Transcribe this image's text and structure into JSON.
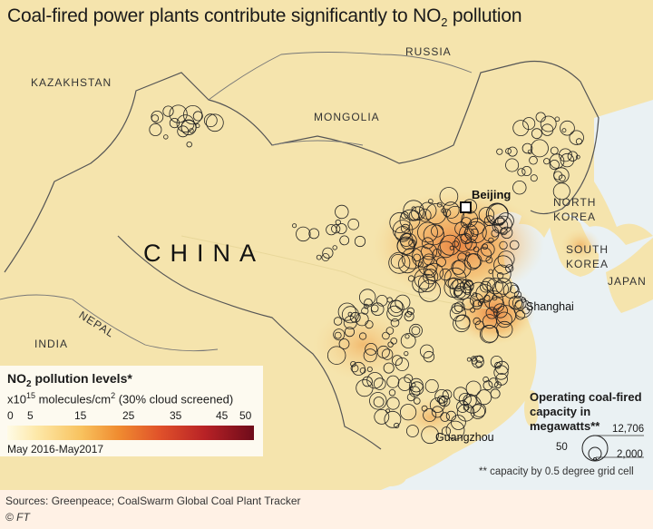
{
  "title": {
    "prefix": "Coal-fired power plants contribute significantly to NO",
    "sub": "2",
    "suffix": " pollution"
  },
  "countries": {
    "russia": "RUSSIA",
    "kazakhstan": "KAZAKHSTAN",
    "mongolia": "MONGOLIA",
    "north_korea_1": "NORTH",
    "north_korea_2": "KOREA",
    "south_korea_1": "SOUTH",
    "south_korea_2": "KOREA",
    "japan": "JAPAN",
    "nepal": "NEPAL",
    "india": "INDIA",
    "china": "CHINA"
  },
  "cities": {
    "beijing": "Beijing",
    "shanghai": "Shanghai",
    "guangzhou": "Guangzhou"
  },
  "no2_legend": {
    "title_prefix": "NO",
    "title_sub": "2",
    "title_suffix": " pollution levels*",
    "unit_prefix": "x10",
    "unit_exp": "15",
    "unit_mid": " molecules/cm",
    "unit_exp2": "2",
    "unit_suffix": " (30% cloud screened)",
    "ticks": [
      "0",
      "5",
      "15",
      "25",
      "35",
      "45",
      "50"
    ],
    "period": "May 2016-May2017"
  },
  "capacity_legend": {
    "title": "Operating coal-fired capacity in megawatts**",
    "values": [
      "12,706",
      "50",
      "2,000"
    ],
    "note": "** capacity by 0.5 degree grid cell"
  },
  "colors": {
    "background": "#fff1e5",
    "land": "#f6e2a8",
    "sea": "#e9f1f4",
    "hotspot": "#e0512a",
    "circle_stroke": "#222222"
  },
  "footer": {
    "sources": "Sources: Greenpeace; CoalSwarm Global Coal Plant Tracker",
    "credit": "© FT"
  }
}
